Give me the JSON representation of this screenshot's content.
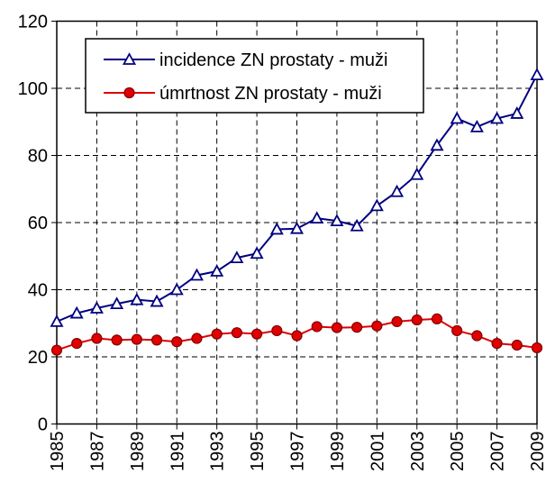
{
  "chart_data": {
    "type": "line",
    "x": [
      1985,
      1986,
      1987,
      1988,
      1989,
      1990,
      1991,
      1992,
      1993,
      1994,
      1995,
      1996,
      1997,
      1998,
      1999,
      2000,
      2001,
      2002,
      2003,
      2004,
      2005,
      2006,
      2007,
      2008,
      2009
    ],
    "series": [
      {
        "name": "incidence ZN prostaty - muži",
        "color": "#000080",
        "marker": "triangle",
        "values": [
          30.5,
          33,
          34.5,
          35.8,
          37,
          36.5,
          40,
          44.3,
          45.5,
          49.5,
          50.8,
          58,
          58.2,
          61.3,
          60.5,
          59,
          65,
          69.2,
          74.3,
          83,
          91,
          88.5,
          91,
          92.5,
          104
        ]
      },
      {
        "name": "úmrtnost ZN prostaty - muži",
        "color": "#e00000",
        "marker": "circle",
        "values": [
          22,
          24,
          25.5,
          25,
          25.2,
          25,
          24.5,
          25.5,
          26.8,
          27.2,
          26.8,
          27.8,
          26.3,
          29,
          28.7,
          28.8,
          29.2,
          30.5,
          31,
          31.3,
          27.8,
          26.3,
          24,
          23.5,
          22.7
        ]
      }
    ],
    "xlim": [
      1985,
      2009
    ],
    "xticks": [
      1985,
      1987,
      1989,
      1991,
      1993,
      1995,
      1997,
      1999,
      2001,
      2003,
      2005,
      2007,
      2009
    ],
    "ylim": [
      0,
      120
    ],
    "yticks": [
      0,
      20,
      40,
      60,
      80,
      100,
      120
    ],
    "grid": true
  }
}
